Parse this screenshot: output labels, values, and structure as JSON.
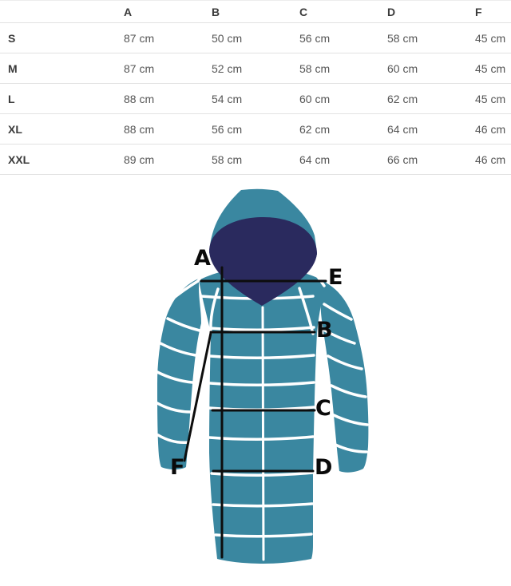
{
  "size_table": {
    "corner_label": "",
    "columns": [
      "A",
      "B",
      "C",
      "D",
      "F"
    ],
    "rows": [
      {
        "size": "S",
        "values": [
          "87 cm",
          "50 cm",
          "56 cm",
          "58 cm",
          "45 cm"
        ]
      },
      {
        "size": "M",
        "values": [
          "87 cm",
          "52 cm",
          "58 cm",
          "60 cm",
          "45 cm"
        ]
      },
      {
        "size": "L",
        "values": [
          "88 cm",
          "54 cm",
          "60 cm",
          "62 cm",
          "45 cm"
        ]
      },
      {
        "size": "XL",
        "values": [
          "88 cm",
          "56 cm",
          "62 cm",
          "64 cm",
          "46 cm"
        ]
      },
      {
        "size": "XXL",
        "values": [
          "89 cm",
          "58 cm",
          "64 cm",
          "66 cm",
          "46 cm"
        ]
      }
    ],
    "unit": "cm"
  },
  "diagram": {
    "garment": "hooded quilted puffer coat",
    "labels": {
      "A": "A",
      "B": "B",
      "C": "C",
      "D": "D",
      "E": "E",
      "F": "F"
    },
    "colors": {
      "coat": "#3A87A0",
      "hood_lining": "#2A2A5E",
      "quilt_line": "#FFFFFF",
      "measure_line": "#0D0D0D",
      "label_text": "#0A0A0A"
    }
  }
}
